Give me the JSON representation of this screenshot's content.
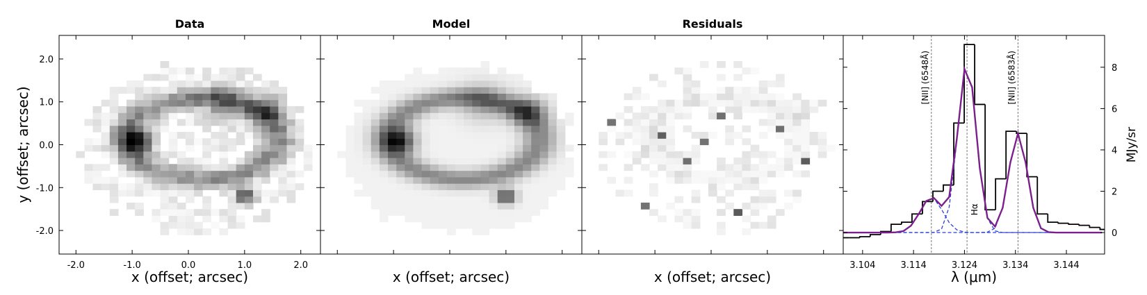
{
  "chart_data": [
    {
      "type": "image",
      "title": "Data",
      "xlabel": "x (offset; arcsec)",
      "ylabel": "y (offset; arcsec)",
      "xlim": [
        -2.3,
        2.35
      ],
      "ylim": [
        -2.55,
        2.55
      ],
      "xticks": [
        {
          "value": -2,
          "label": "-2.0"
        },
        {
          "value": -1,
          "label": "-1.0"
        },
        {
          "value": 0,
          "label": "0.0"
        },
        {
          "value": 1,
          "label": "1.0"
        },
        {
          "value": 2,
          "label": "2.0"
        }
      ],
      "yticks": [
        {
          "value": -2,
          "label": "-2.0"
        },
        {
          "value": -1,
          "label": "-1.0"
        },
        {
          "value": 0,
          "label": "0.0"
        },
        {
          "value": 1,
          "label": "1.0"
        },
        {
          "value": 2,
          "label": "2.0"
        }
      ]
    },
    {
      "type": "image",
      "title": "Model",
      "xlabel": "x (offset; arcsec)",
      "xlim": [
        -2.3,
        2.35
      ],
      "ylim": [
        -2.55,
        2.55
      ]
    },
    {
      "type": "image",
      "title": "Residuals",
      "xlabel": "x (offset; arcsec)",
      "xlim": [
        -2.3,
        2.35
      ],
      "ylim": [
        -2.55,
        2.55
      ]
    },
    {
      "type": "spectrum",
      "xlabel": "λ (μm)",
      "ylabel": "MJy/sr",
      "xlim": [
        3.1002,
        3.1515
      ],
      "ylim": [
        -1.04,
        9.54
      ],
      "xticks": [
        3.104,
        3.114,
        3.124,
        3.134,
        3.144
      ],
      "yticks": [
        0,
        2,
        4,
        6,
        8
      ],
      "yaxis_side": "right",
      "histogram": {
        "color": "#000000",
        "bins": [
          3.09935,
          3.1014,
          3.10345,
          3.1055,
          3.10755,
          3.1096,
          3.11165,
          3.1137,
          3.11575,
          3.1178,
          3.11985,
          3.1219,
          3.12395,
          3.126,
          3.12805,
          3.1301,
          3.13215,
          3.1342,
          3.13625,
          3.1383,
          3.14035,
          3.1424,
          3.14445,
          3.1465,
          3.14855,
          3.1506,
          3.15265
        ],
        "values": [
          -0.25,
          -0.25,
          -0.2,
          -0.1,
          0.05,
          0.4,
          0.5,
          0.9,
          1.5,
          2.0,
          2.3,
          5.3,
          9.1,
          6.2,
          1.1,
          2.6,
          4.9,
          4.8,
          2.7,
          0.9,
          0.5,
          0.45,
          0.4,
          0.35,
          0.25,
          0.15
        ]
      },
      "x": [
        3.1,
        3.1015,
        3.103,
        3.1045,
        3.106,
        3.1075,
        3.109,
        3.1105,
        3.112,
        3.1135,
        3.115,
        3.1165,
        3.118,
        3.1195,
        3.121,
        3.1225,
        3.124,
        3.1255,
        3.127,
        3.1285,
        3.13,
        3.1315,
        3.133,
        3.1345,
        3.136,
        3.1375,
        3.139,
        3.1405,
        3.142,
        3.1435,
        3.145,
        3.1465,
        3.148,
        3.1495,
        3.151
      ],
      "series": [
        {
          "color": "#2b3fd6",
          "linestyle": "dashed",
          "values": [
            0,
            0,
            0,
            0,
            0,
            0,
            0,
            0.01,
            0.07,
            0.33,
            0.89,
            1.53,
            1.66,
            1.12,
            0.48,
            0.13,
            0.02,
            0,
            0,
            0,
            0,
            0,
            0,
            0,
            0,
            0,
            0,
            0,
            0,
            0,
            0,
            0,
            0,
            0,
            0
          ]
        },
        {
          "color": "#2b3fd6",
          "linestyle": "dashed",
          "values": [
            0,
            0,
            0,
            0,
            0,
            0,
            0,
            0,
            0,
            0,
            0,
            0,
            0.01,
            0.17,
            1.24,
            4.42,
            7.89,
            7.03,
            3.12,
            0.69,
            0.08,
            0,
            0,
            0,
            0,
            0,
            0,
            0,
            0,
            0,
            0,
            0,
            0,
            0,
            0
          ]
        },
        {
          "color": "#2b3fd6",
          "linestyle": "dashed",
          "values": [
            0,
            0,
            0,
            0,
            0,
            0,
            0,
            0,
            0,
            0,
            0,
            0,
            0,
            0,
            0,
            0,
            0,
            0,
            0,
            0.02,
            0.21,
            1.2,
            3.39,
            4.8,
            3.39,
            1.2,
            0.21,
            0.02,
            0,
            0,
            0,
            0,
            0,
            0,
            0
          ]
        },
        {
          "color": "#7b1f8c",
          "linestyle": "solid",
          "values": [
            0,
            0,
            0,
            0,
            0,
            0,
            0,
            0.01,
            0.07,
            0.33,
            0.89,
            1.53,
            1.67,
            1.29,
            1.72,
            4.55,
            7.91,
            7.03,
            3.12,
            0.71,
            0.29,
            1.2,
            3.39,
            4.8,
            3.39,
            1.2,
            0.21,
            0.02,
            0,
            0,
            0,
            0,
            0,
            0,
            0
          ]
        }
      ],
      "line_color": "#777777",
      "lines": [
        {
          "x": 3.1175,
          "label": "[NII] (6548Å)"
        },
        {
          "x": 3.1245,
          "label": "Hα"
        },
        {
          "x": 3.1345,
          "label": "[NII] (6583Å)"
        }
      ]
    }
  ]
}
